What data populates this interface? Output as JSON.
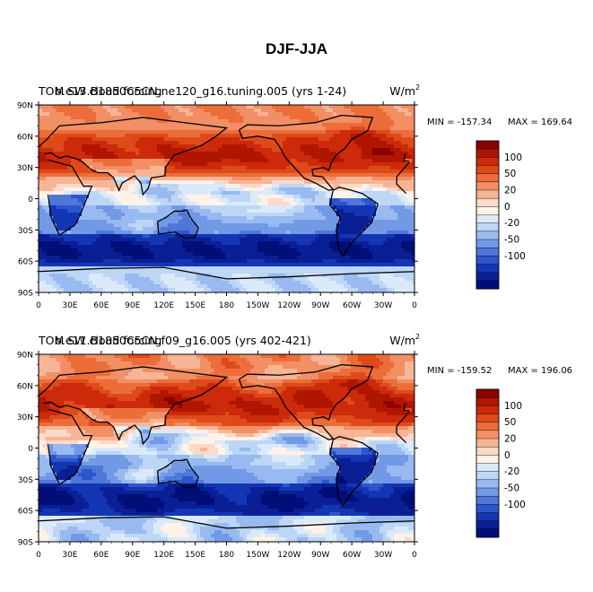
{
  "page_title": "DJF-JJA",
  "chart_data": [
    {
      "type": "heatmap",
      "title_left": "TOM SW cloud forcing",
      "title_overlap": "b.e13.B1850C5CN.ne120_g16.tuning.005 (yrs 1-24)",
      "units": "W/m",
      "units_sup": "2",
      "min_text": "MIN = -157.34",
      "max_text": "MAX = 169.64",
      "x_ticks": [
        "0",
        "30E",
        "60E",
        "90E",
        "120E",
        "150E",
        "180",
        "150W",
        "120W",
        "90W",
        "60W",
        "30W",
        "0"
      ],
      "y_ticks": [
        "90N",
        "60N",
        "30N",
        "0",
        "30S",
        "60S",
        "90S"
      ],
      "xlim": [
        0,
        360
      ],
      "ylim": [
        -90,
        90
      ],
      "colorbar_labels": [
        "100",
        "50",
        "20",
        "0",
        "-20",
        "-50",
        "-100"
      ]
    },
    {
      "type": "heatmap",
      "title_left": "TOM SW cloud forcing",
      "title_overlap": "b.e11.B1850C5CN.f09_g16.005 (yrs 402-421)",
      "units": "W/m",
      "units_sup": "2",
      "min_text": "MIN = -159.52",
      "max_text": "MAX = 196.06",
      "x_ticks": [
        "0",
        "30E",
        "60E",
        "90E",
        "120E",
        "150E",
        "180",
        "150W",
        "120W",
        "90W",
        "60W",
        "30W",
        "0"
      ],
      "y_ticks": [
        "90N",
        "60N",
        "30N",
        "0",
        "30S",
        "60S",
        "90S"
      ],
      "xlim": [
        0,
        360
      ],
      "ylim": [
        -90,
        90
      ],
      "colorbar_labels": [
        "100",
        "50",
        "20",
        "0",
        "-20",
        "-50",
        "-100"
      ]
    }
  ],
  "palette": [
    "#8b0000",
    "#b01500",
    "#cc2a0a",
    "#de4a1a",
    "#ec6d3a",
    "#f28f65",
    "#f7b596",
    "#fcd9c8",
    "#fff2e8",
    "#dbeafb",
    "#bdd6f6",
    "#98baf0",
    "#7299e6",
    "#4f77da",
    "#2d55cc",
    "#1336b4",
    "#0a1f96",
    "#000e78"
  ]
}
